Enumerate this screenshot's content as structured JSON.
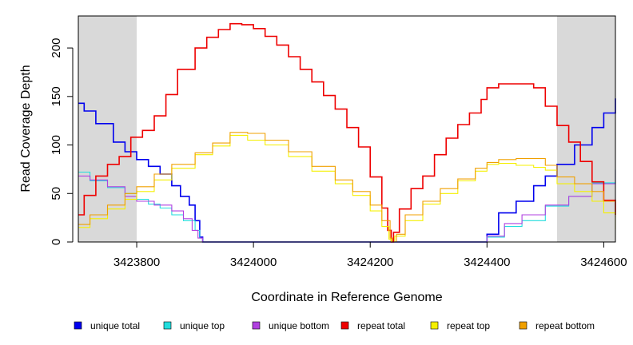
{
  "chart_data": {
    "type": "line",
    "title": "",
    "xlabel": "Coordinate in Reference Genome",
    "ylabel": "Read Coverage Depth",
    "xlim": [
      3423700,
      3424620
    ],
    "ylim": [
      0,
      233
    ],
    "x_ticks": [
      3423800,
      3424000,
      3424200,
      3424400,
      3424600
    ],
    "x_tick_labels": [
      "3423800",
      "3424000",
      "3424200",
      "3424400",
      "3424600"
    ],
    "y_ticks": [
      0,
      50,
      100,
      150,
      200
    ],
    "y_tick_labels": [
      "0",
      "50",
      "100",
      "150",
      "200"
    ],
    "shaded_regions": [
      {
        "from": 3423700,
        "to": 3423800,
        "color": "#d9d9d9"
      },
      {
        "from": 3424520,
        "to": 3424620,
        "color": "#d9d9d9"
      }
    ],
    "series": [
      {
        "name": "unique total",
        "color": "#0000ee",
        "x": [
          3423700,
          3423710,
          3423730,
          3423760,
          3423780,
          3423800,
          3423820,
          3423840,
          3423860,
          3423875,
          3423890,
          3423900,
          3423908,
          3423913,
          3424390,
          3424400,
          3424420,
          3424450,
          3424480,
          3424500,
          3424520,
          3424550,
          3424580,
          3424600,
          3424620
        ],
        "y": [
          143,
          135,
          122,
          103,
          93,
          85,
          78,
          70,
          58,
          47,
          38,
          22,
          5,
          0,
          0,
          8,
          30,
          42,
          58,
          68,
          80,
          100,
          118,
          133,
          148
        ]
      },
      {
        "name": "unique top",
        "color": "#22dddd",
        "x": [
          3423700,
          3423720,
          3423750,
          3423780,
          3423800,
          3423820,
          3423840,
          3423860,
          3423880,
          3423900,
          3423908,
          3423913,
          3424392,
          3424400,
          3424430,
          3424460,
          3424500,
          3424540,
          3424580,
          3424620
        ],
        "y": [
          72,
          63,
          56,
          50,
          44,
          39,
          35,
          28,
          22,
          12,
          4,
          0,
          0,
          5,
          16,
          22,
          37,
          47,
          61,
          75
        ]
      },
      {
        "name": "unique bottom",
        "color": "#b040e0",
        "x": [
          3423700,
          3423720,
          3423750,
          3423780,
          3423800,
          3423830,
          3423860,
          3423880,
          3423895,
          3423905,
          3423913,
          3424390,
          3424400,
          3424430,
          3424460,
          3424500,
          3424540,
          3424580,
          3424620
        ],
        "y": [
          68,
          64,
          57,
          47,
          42,
          38,
          32,
          24,
          12,
          4,
          0,
          0,
          6,
          19,
          28,
          38,
          47,
          60,
          74
        ]
      },
      {
        "name": "repeat total",
        "color": "#ee0000",
        "x": [
          3423700,
          3423710,
          3423730,
          3423750,
          3423770,
          3423790,
          3423810,
          3423830,
          3423850,
          3423870,
          3423900,
          3423920,
          3423940,
          3423960,
          3423980,
          3424000,
          3424020,
          3424040,
          3424060,
          3424080,
          3424100,
          3424120,
          3424140,
          3424160,
          3424180,
          3424200,
          3424220,
          3424230,
          3424236,
          3424240,
          3424250,
          3424270,
          3424290,
          3424310,
          3424330,
          3424350,
          3424370,
          3424390,
          3424400,
          3424420,
          3424460,
          3424480,
          3424500,
          3424520,
          3424540,
          3424560,
          3424580,
          3424600,
          3424620
        ],
        "y": [
          28,
          48,
          68,
          80,
          88,
          108,
          115,
          130,
          152,
          178,
          200,
          211,
          219,
          225,
          224,
          220,
          212,
          203,
          191,
          178,
          165,
          151,
          137,
          118,
          98,
          67,
          35,
          12,
          0,
          10,
          34,
          55,
          68,
          90,
          107,
          121,
          133,
          147,
          159,
          163,
          163,
          159,
          140,
          120,
          103,
          83,
          62,
          43,
          28
        ]
      },
      {
        "name": "repeat top",
        "color": "#f5f000",
        "x": [
          3423700,
          3423720,
          3423750,
          3423780,
          3423800,
          3423830,
          3423860,
          3423900,
          3423930,
          3423960,
          3423990,
          3424020,
          3424060,
          3424100,
          3424140,
          3424170,
          3424200,
          3424220,
          3424232,
          3424236,
          3424242,
          3424260,
          3424290,
          3424320,
          3424350,
          3424380,
          3424400,
          3424420,
          3424450,
          3424480,
          3424500,
          3424520,
          3424550,
          3424580,
          3424600,
          3424620
        ],
        "y": [
          15,
          24,
          34,
          44,
          52,
          64,
          76,
          90,
          99,
          110,
          105,
          100,
          88,
          73,
          60,
          48,
          32,
          16,
          3,
          0,
          6,
          22,
          39,
          50,
          63,
          73,
          80,
          81,
          79,
          77,
          74,
          60,
          52,
          42,
          30,
          13
        ]
      },
      {
        "name": "repeat bottom",
        "color": "#f0a000",
        "x": [
          3423700,
          3423720,
          3423750,
          3423780,
          3423800,
          3423830,
          3423860,
          3423900,
          3423930,
          3423960,
          3423990,
          3424020,
          3424060,
          3424100,
          3424140,
          3424170,
          3424200,
          3424220,
          3424234,
          3424238,
          3424245,
          3424260,
          3424290,
          3424320,
          3424350,
          3424380,
          3424400,
          3424420,
          3424450,
          3424480,
          3424500,
          3424520,
          3424550,
          3424580,
          3424600,
          3424620
        ],
        "y": [
          18,
          28,
          38,
          50,
          57,
          70,
          80,
          92,
          102,
          113,
          112,
          105,
          93,
          78,
          64,
          52,
          38,
          22,
          4,
          0,
          8,
          28,
          42,
          55,
          65,
          76,
          82,
          85,
          86,
          86,
          79,
          67,
          60,
          52,
          42,
          26
        ]
      }
    ],
    "legend": {
      "placement": "bottom",
      "entries": [
        "unique total",
        "unique top",
        "unique bottom",
        "repeat total",
        "repeat top",
        "repeat bottom"
      ]
    }
  }
}
